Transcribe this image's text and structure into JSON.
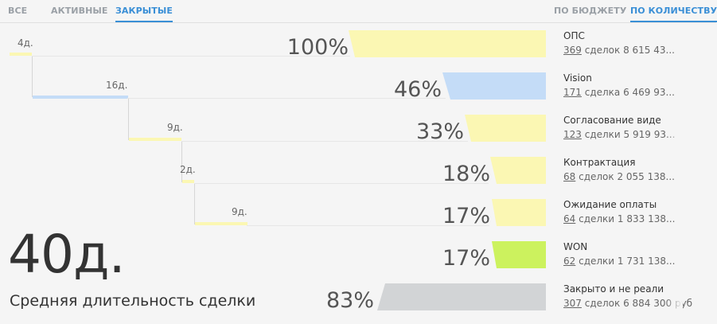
{
  "tabs": {
    "left": [
      {
        "label": "ВСЕ",
        "active": false
      },
      {
        "label": "АКТИВНЫЕ",
        "active": false
      },
      {
        "label": "ЗАКРЫТЫЕ",
        "active": true
      }
    ],
    "right": [
      {
        "label": "ПО БЮДЖЕТУ",
        "active": false
      },
      {
        "label": "ПО КОЛИЧЕСТВУ",
        "active": true
      }
    ]
  },
  "stages": [
    {
      "duration": "4д.",
      "percent": "100%",
      "color": "#fbf7b3",
      "name": "ОПС",
      "count": "369",
      "sub": " сделок 8 615 43..."
    },
    {
      "duration": "16д.",
      "percent": "46%",
      "color": "#c4dcf7",
      "name": "Vision",
      "count": "171",
      "sub": " сделка 6 469 93..."
    },
    {
      "duration": "9д.",
      "percent": "33%",
      "color": "#fbf7b3",
      "name": "Согласование виде",
      "count": "123",
      "sub": " сделки 5 919 93..."
    },
    {
      "duration": "2д.",
      "percent": "18%",
      "color": "#fbf7b3",
      "name": "Контрактация",
      "count": "68",
      "sub": " сделок 2 055 138..."
    },
    {
      "duration": "9д.",
      "percent": "17%",
      "color": "#fbf7b3",
      "name": "Ожидание оплаты",
      "count": "64",
      "sub": " сделки 1 833 138..."
    },
    {
      "duration": "",
      "percent": "17%",
      "color": "#ccf25e",
      "name": "WON",
      "count": "62",
      "sub": " сделки 1 731 138..."
    },
    {
      "duration": "",
      "percent": "83%",
      "color": "#d2d4d6",
      "name": "Закрыто и не реали",
      "count": "307",
      "sub": " сделок 6 884 300 руб"
    }
  ],
  "summary": {
    "days": "40д.",
    "caption": "Средняя длительность сделки"
  }
}
